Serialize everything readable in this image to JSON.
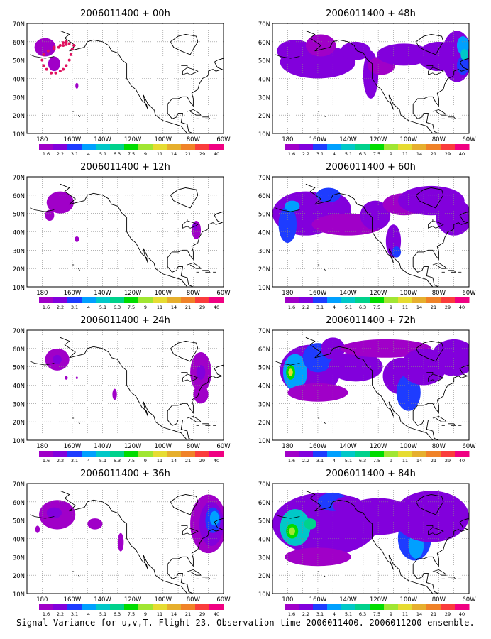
{
  "figure": {
    "caption": "Signal Variance for u,v,T. Flight 23. Observation time 2006011400. 2006011200 ensemble.",
    "lat_labels": [
      "70N",
      "60N",
      "50N",
      "40N",
      "30N",
      "20N",
      "10N"
    ],
    "lon_labels": [
      "180",
      "160W",
      "140W",
      "120W",
      "100W",
      "80W",
      "60W"
    ],
    "colorbar": {
      "labels": [
        "1.6",
        "2.2",
        "3.1",
        "4",
        "5.1",
        "6.3",
        "7.5",
        "9",
        "11",
        "14",
        "21",
        "29",
        "40"
      ],
      "colors": [
        "#a000c8",
        "#8200dc",
        "#1e3cff",
        "#00a0ff",
        "#00c8c8",
        "#00d28c",
        "#00dc00",
        "#a0e632",
        "#e6dc32",
        "#e6af2d",
        "#f08228",
        "#fa3c3c",
        "#f00082"
      ]
    },
    "panels": [
      {
        "title": "2006011400 + 00h",
        "flight_track": true,
        "blobs": [
          {
            "lon": -178,
            "lat": 57,
            "rx": 7,
            "ry": 5,
            "level": 0
          },
          {
            "lon": -172,
            "lat": 48,
            "rx": 4,
            "ry": 4,
            "level": 0
          },
          {
            "lon": -157,
            "lat": 36,
            "rx": 1,
            "ry": 1.6,
            "level": 0
          }
        ]
      },
      {
        "title": "2006011400 + 48h",
        "blobs": [
          {
            "lon": -175,
            "lat": 55,
            "rx": 12,
            "ry": 6,
            "level": 1
          },
          {
            "lon": -160,
            "lat": 49,
            "rx": 25,
            "ry": 9,
            "level": 1
          },
          {
            "lon": -158,
            "lat": 58,
            "rx": 10,
            "ry": 6,
            "level": 0
          },
          {
            "lon": -135,
            "lat": 55,
            "rx": 10,
            "ry": 5,
            "level": 1
          },
          {
            "lon": -125,
            "lat": 42,
            "rx": 5,
            "ry": 13,
            "level": 1
          },
          {
            "lon": -118,
            "lat": 47,
            "rx": 9,
            "ry": 5,
            "level": 0
          },
          {
            "lon": -103,
            "lat": 53,
            "rx": 18,
            "ry": 6,
            "level": 1
          },
          {
            "lon": -80,
            "lat": 52,
            "rx": 14,
            "ry": 8,
            "level": 1
          },
          {
            "lon": -68,
            "lat": 52,
            "rx": 10,
            "ry": 14,
            "level": 1
          },
          {
            "lon": -64,
            "lat": 58,
            "rx": 4,
            "ry": 5,
            "level": 3
          },
          {
            "lon": -64,
            "lat": 47,
            "rx": 4,
            "ry": 5,
            "level": 2
          },
          {
            "lon": -63,
            "lat": 53,
            "rx": 2.5,
            "ry": 3,
            "level": 4
          }
        ]
      },
      {
        "title": "2006011400 + 12h",
        "blobs": [
          {
            "lon": -168,
            "lat": 56,
            "rx": 9,
            "ry": 6,
            "level": 0
          },
          {
            "lon": -175,
            "lat": 49,
            "rx": 3,
            "ry": 3,
            "level": 0
          },
          {
            "lon": -157,
            "lat": 36,
            "rx": 1.5,
            "ry": 1.5,
            "level": 0
          },
          {
            "lon": -78,
            "lat": 41,
            "rx": 3,
            "ry": 5,
            "level": 0
          },
          {
            "lon": -79,
            "lat": 43,
            "rx": 1.5,
            "ry": 2,
            "level": 1
          }
        ]
      },
      {
        "title": "2006011400 + 60h",
        "blobs": [
          {
            "lon": -168,
            "lat": 50,
            "rx": 22,
            "ry": 12,
            "level": 1
          },
          {
            "lon": -180,
            "lat": 44,
            "rx": 6,
            "ry": 10,
            "level": 2
          },
          {
            "lon": -177,
            "lat": 54,
            "rx": 5,
            "ry": 3,
            "level": 3
          },
          {
            "lon": -150,
            "lat": 52,
            "rx": 12,
            "ry": 9,
            "level": 1
          },
          {
            "lon": -153,
            "lat": 60,
            "rx": 8,
            "ry": 4,
            "level": 2
          },
          {
            "lon": -140,
            "lat": 44,
            "rx": 24,
            "ry": 6,
            "level": 0
          },
          {
            "lon": -122,
            "lat": 49,
            "rx": 10,
            "ry": 8,
            "level": 1
          },
          {
            "lon": -103,
            "lat": 55,
            "rx": 14,
            "ry": 6,
            "level": 0
          },
          {
            "lon": -110,
            "lat": 35,
            "rx": 5,
            "ry": 9,
            "level": 1
          },
          {
            "lon": -108,
            "lat": 29,
            "rx": 3,
            "ry": 3,
            "level": 2
          },
          {
            "lon": -85,
            "lat": 57,
            "rx": 22,
            "ry": 8,
            "level": 1
          },
          {
            "lon": -70,
            "lat": 48,
            "rx": 12,
            "ry": 10,
            "level": 1
          }
        ]
      },
      {
        "title": "2006011400 + 24h",
        "blobs": [
          {
            "lon": -170,
            "lat": 54,
            "rx": 8,
            "ry": 6,
            "level": 0
          },
          {
            "lon": -170,
            "lat": 54,
            "rx": 3,
            "ry": 2.5,
            "level": 1
          },
          {
            "lon": -164,
            "lat": 44,
            "rx": 1,
            "ry": 1,
            "level": 0
          },
          {
            "lon": -157,
            "lat": 44,
            "rx": 0.7,
            "ry": 0.7,
            "level": 0
          },
          {
            "lon": -132,
            "lat": 35,
            "rx": 1.5,
            "ry": 3,
            "level": 0
          },
          {
            "lon": -75,
            "lat": 47,
            "rx": 7,
            "ry": 11,
            "level": 0
          },
          {
            "lon": -75,
            "lat": 47,
            "rx": 3,
            "ry": 4,
            "level": 1
          },
          {
            "lon": -75,
            "lat": 35,
            "rx": 5,
            "ry": 5,
            "level": 0
          }
        ]
      },
      {
        "title": "2006011400 + 72h",
        "blobs": [
          {
            "lon": -165,
            "lat": 48,
            "rx": 20,
            "ry": 14,
            "level": 1
          },
          {
            "lon": -175,
            "lat": 47,
            "rx": 8,
            "ry": 10,
            "level": 3
          },
          {
            "lon": -178,
            "lat": 47,
            "rx": 3,
            "ry": 4,
            "level": 6
          },
          {
            "lon": -178,
            "lat": 47,
            "rx": 1.5,
            "ry": 2,
            "level": 8
          },
          {
            "lon": -160,
            "lat": 55,
            "rx": 10,
            "ry": 8,
            "level": 2
          },
          {
            "lon": -150,
            "lat": 60,
            "rx": 8,
            "ry": 6,
            "level": 1
          },
          {
            "lon": -160,
            "lat": 36,
            "rx": 20,
            "ry": 5,
            "level": 0
          },
          {
            "lon": -135,
            "lat": 50,
            "rx": 18,
            "ry": 8,
            "level": 1
          },
          {
            "lon": -115,
            "lat": 60,
            "rx": 30,
            "ry": 5,
            "level": 0
          },
          {
            "lon": -105,
            "lat": 45,
            "rx": 12,
            "ry": 10,
            "level": 1
          },
          {
            "lon": -100,
            "lat": 36,
            "rx": 8,
            "ry": 10,
            "level": 2
          },
          {
            "lon": -90,
            "lat": 50,
            "rx": 15,
            "ry": 10,
            "level": 1
          },
          {
            "lon": -70,
            "lat": 55,
            "rx": 15,
            "ry": 10,
            "level": 1
          }
        ]
      },
      {
        "title": "2006011400 + 36h",
        "blobs": [
          {
            "lon": -170,
            "lat": 53,
            "rx": 12,
            "ry": 8,
            "level": 0
          },
          {
            "lon": -172,
            "lat": 54,
            "rx": 5,
            "ry": 3,
            "level": 1
          },
          {
            "lon": -145,
            "lat": 48,
            "rx": 5,
            "ry": 3,
            "level": 0
          },
          {
            "lon": -183,
            "lat": 45,
            "rx": 1.5,
            "ry": 2,
            "level": 0
          },
          {
            "lon": -128,
            "lat": 38,
            "rx": 2,
            "ry": 5,
            "level": 0
          },
          {
            "lon": -70,
            "lat": 48,
            "rx": 12,
            "ry": 16,
            "level": 0
          },
          {
            "lon": -68,
            "lat": 48,
            "rx": 8,
            "ry": 12,
            "level": 1
          },
          {
            "lon": -67,
            "lat": 50,
            "rx": 5,
            "ry": 7,
            "level": 2
          },
          {
            "lon": -66,
            "lat": 51,
            "rx": 3,
            "ry": 4,
            "level": 3
          }
        ]
      },
      {
        "title": "2006011400 + 84h",
        "blobs": [
          {
            "lon": -155,
            "lat": 48,
            "rx": 35,
            "ry": 17,
            "level": 1
          },
          {
            "lon": -175,
            "lat": 46,
            "rx": 10,
            "ry": 10,
            "level": 4
          },
          {
            "lon": -177,
            "lat": 44,
            "rx": 4,
            "ry": 4,
            "level": 6
          },
          {
            "lon": -177,
            "lat": 44,
            "rx": 2,
            "ry": 2.2,
            "level": 7
          },
          {
            "lon": -165,
            "lat": 48,
            "rx": 4,
            "ry": 3,
            "level": 5
          },
          {
            "lon": -150,
            "lat": 60,
            "rx": 10,
            "ry": 5,
            "level": 2
          },
          {
            "lon": -140,
            "lat": 58,
            "rx": 10,
            "ry": 5,
            "level": 1
          },
          {
            "lon": -120,
            "lat": 52,
            "rx": 25,
            "ry": 10,
            "level": 1
          },
          {
            "lon": -160,
            "lat": 30,
            "rx": 22,
            "ry": 5,
            "level": 0
          },
          {
            "lon": -96,
            "lat": 40,
            "rx": 11,
            "ry": 12,
            "level": 2
          },
          {
            "lon": -95,
            "lat": 36,
            "rx": 5,
            "ry": 7,
            "level": 3
          },
          {
            "lon": -85,
            "lat": 52,
            "rx": 25,
            "ry": 14,
            "level": 1
          }
        ]
      }
    ]
  }
}
